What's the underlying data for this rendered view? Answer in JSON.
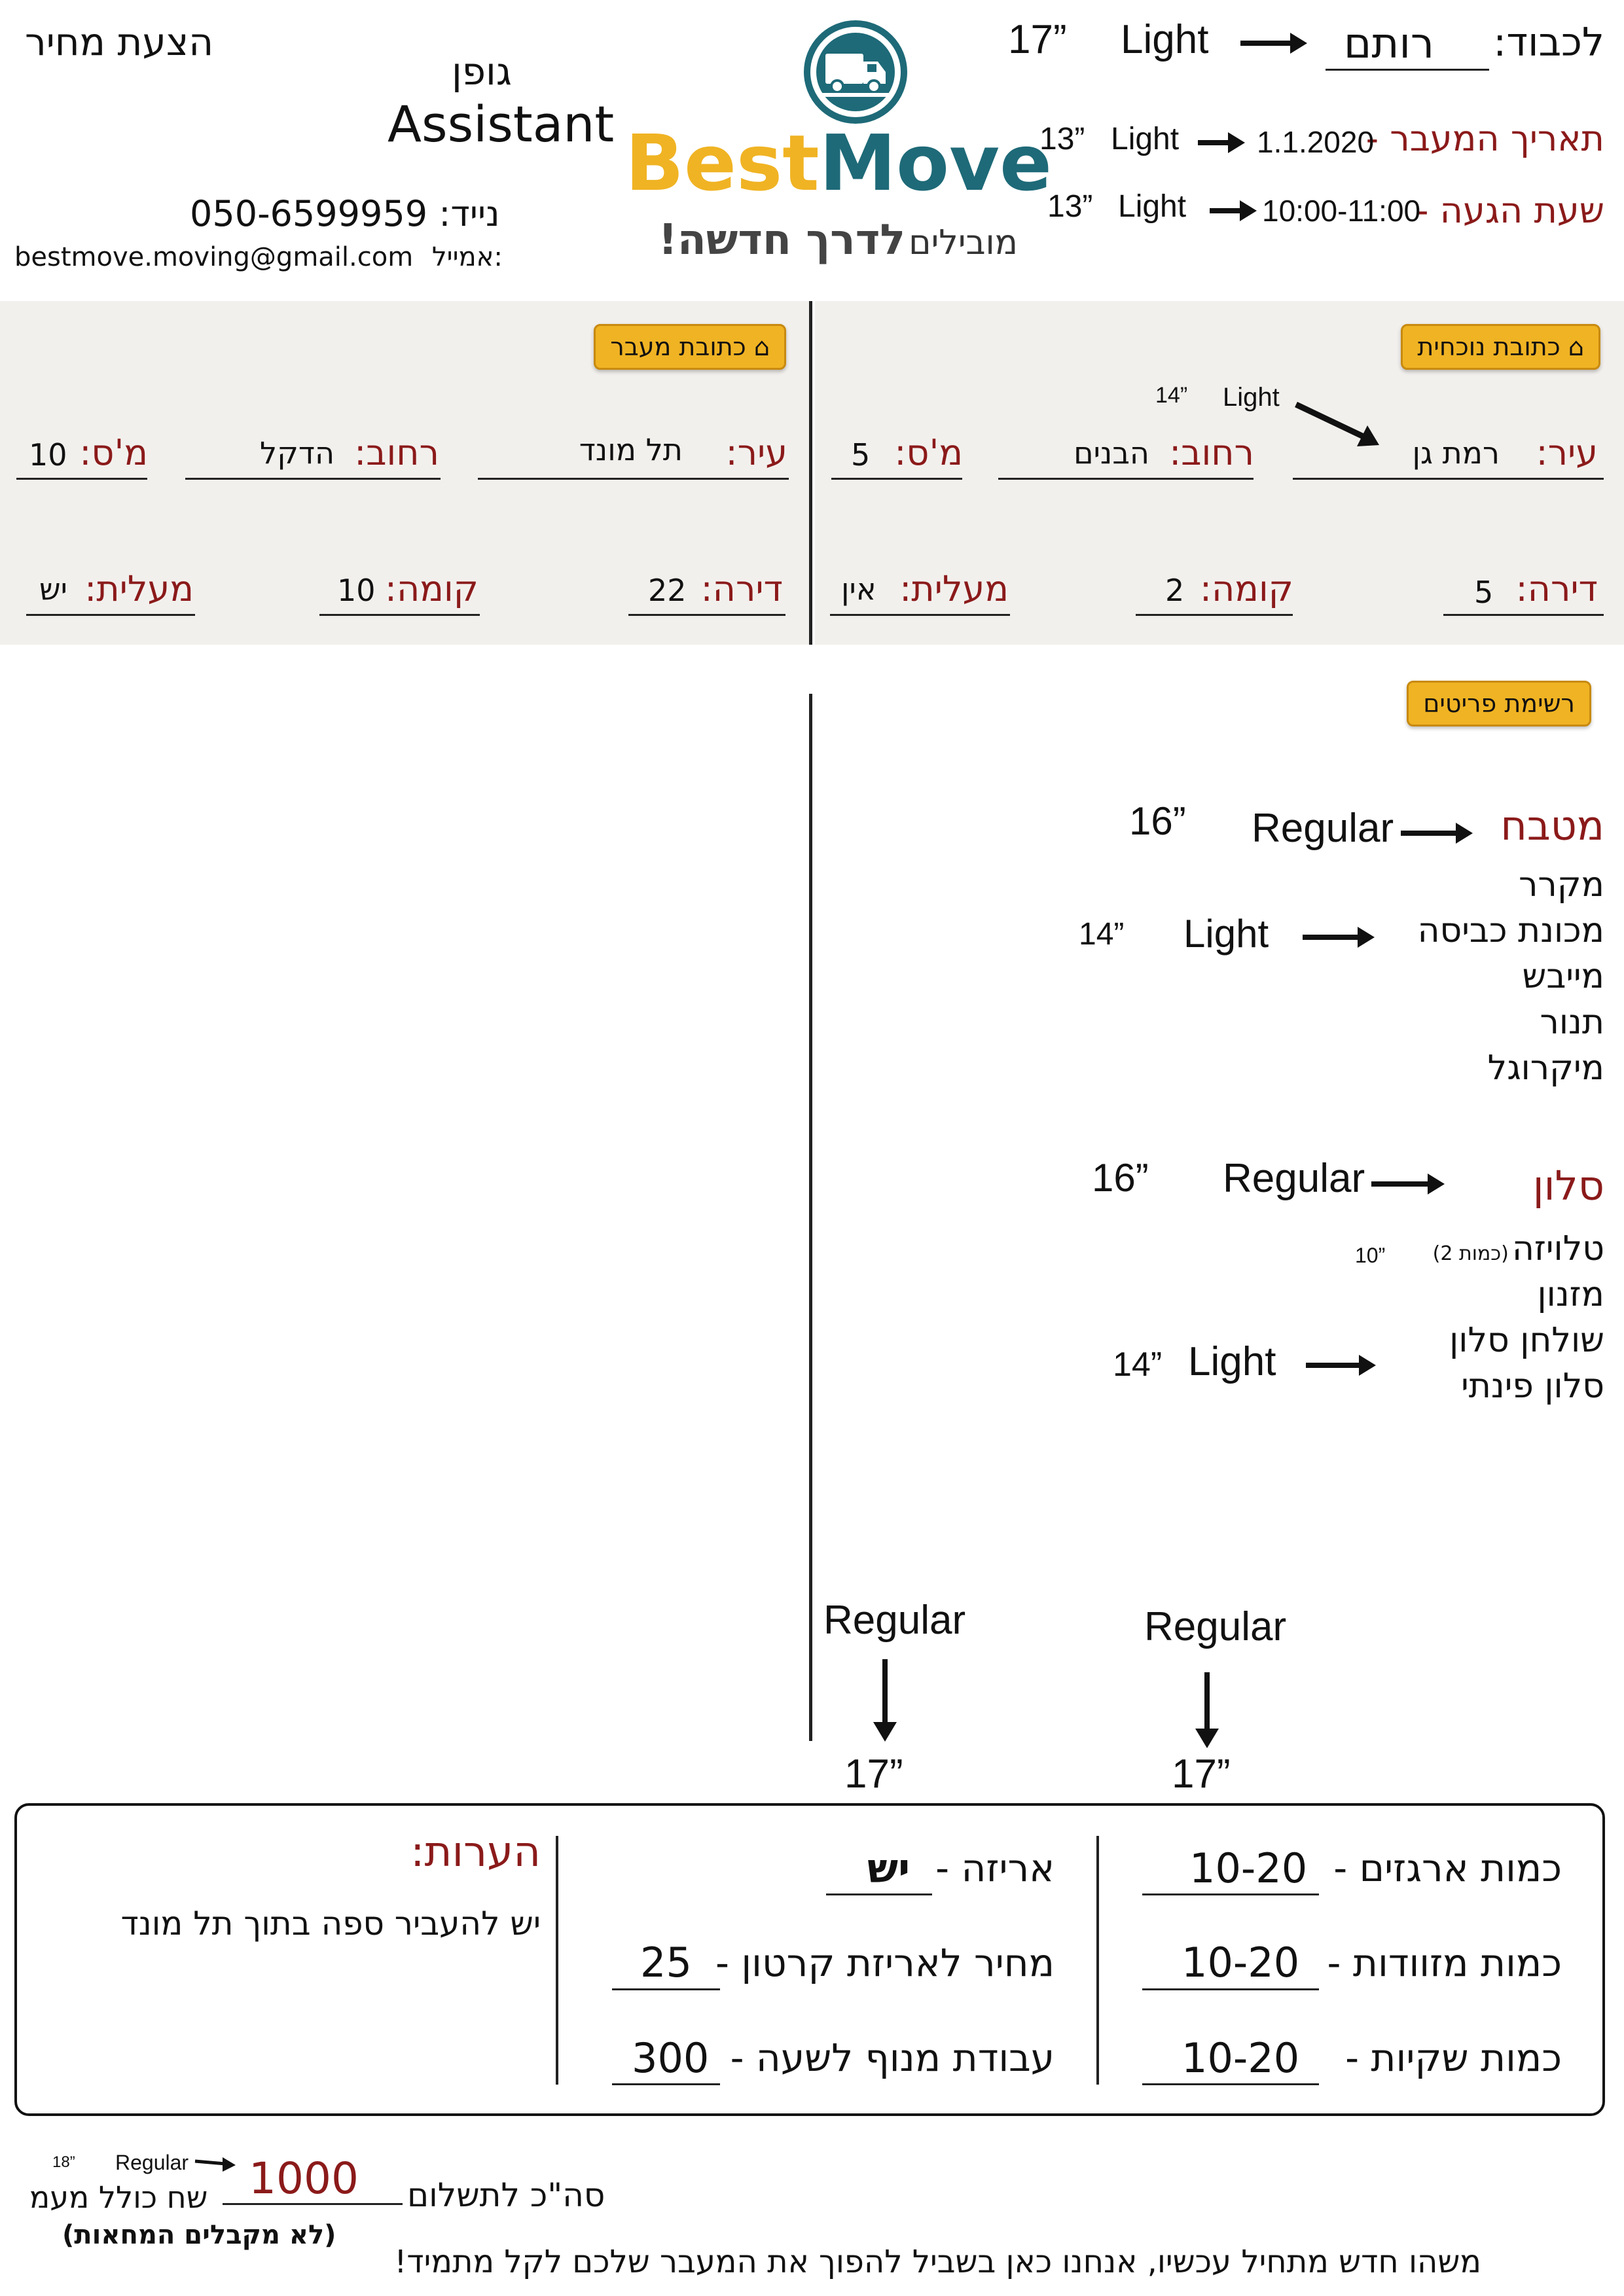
{
  "header": {
    "doc_title": "הצעת מחיר",
    "font_name": "גופן",
    "font_name_en": "Assistant",
    "phone_label": "נייד:",
    "phone": "050-6599959",
    "email_label": "אמייל:",
    "email": "bestmove.moving@gmail.com",
    "logo_best": "Best",
    "logo_move": "Move",
    "logo_tagline_a": "מובילים",
    "logo_tagline_b": "לדרך חדשה!",
    "to_label": "לכבוד:",
    "to_name": "רותם",
    "move_date_label": "תאריך המעבר -",
    "move_date": "1.1.2020",
    "arrival_label": "שעת הגעה -",
    "arrival_time": "10:00-11:00"
  },
  "annotations": {
    "to_size": "17”",
    "to_weight": "Light",
    "date_size": "13”",
    "date_weight": "Light",
    "time_size": "13”",
    "time_weight": "Light",
    "city_size": "14”",
    "city_weight": "Light",
    "kitchen_size": "16”",
    "kitchen_weight": "Regular",
    "kitchen_items_size": "14”",
    "kitchen_items_weight": "Light",
    "living_size": "16”",
    "living_weight": "Regular",
    "qty_size": "10”",
    "living_items_size": "14”",
    "living_items_weight": "Light",
    "summary_left_weight": "Regular",
    "summary_left_size": "17”",
    "summary_right_weight": "Regular",
    "summary_right_size": "17”",
    "total_weight": "Regular",
    "total_size": "18”"
  },
  "current_address": {
    "tag": "כתובת נוכחית",
    "city_label": "עיר:",
    "city": "רמת גן",
    "street_label": "רחוב:",
    "street": "הבנים",
    "number_label": "מ'ס:",
    "number": "5",
    "apt_label": "דירה:",
    "apt": "5",
    "floor_label": "קומה:",
    "floor": "2",
    "elevator_label": "מעלית:",
    "elevator": "אין"
  },
  "new_address": {
    "tag": "כתובת מעבר",
    "city_label": "עיר:",
    "city": "תל מונד",
    "street_label": "רחוב:",
    "street": "הדקל",
    "number_label": "מ'ס:",
    "number": "10",
    "apt_label": "דירה:",
    "apt": "22",
    "floor_label": "קומה:",
    "floor": "10",
    "elevator_label": "מעלית:",
    "elevator": "יש"
  },
  "items": {
    "tag": "רשימת פריטים",
    "kitchen_title": "מטבח",
    "kitchen": [
      "מקרר",
      "מכונת כביסה",
      "מייבש",
      "תנור",
      "מיקרוגל"
    ],
    "living_title": "סלון",
    "living_tv": "טלויזה",
    "living_tv_qty": "(כמות 2)",
    "living": [
      "מזנון",
      "שולחן סלון",
      "סלון פינתי"
    ]
  },
  "summary": {
    "boxes_label": "כמות ארגזים -",
    "boxes": "10-20",
    "suitcases_label": "כמות מזוודות -",
    "suitcases": "10-20",
    "bags_label": "כמות שקיות -",
    "bags": "10-20",
    "packing_label": "אריזה -",
    "packing": "יש",
    "box_price_label": "מחיר לאריזת קרטון -",
    "box_price": "25",
    "crane_label": "עבודת מנוף לשעה -",
    "crane": "300",
    "notes_label": "הערות:",
    "notes": "יש להעביר ספה בתוך תל מונד"
  },
  "footer": {
    "total_label": "סה\"כ לתשלום",
    "total": "1000",
    "currency_note": "שח כולל מעמ",
    "checks_note": "(לא מקבלים המחאות)",
    "slogan": "משהו חדש מתחיל עכשיו, אנחנו כאן בשביל להפוך את המעבר שלכם לקל מתמיד!"
  },
  "colors": {
    "accent_yellow": "#f0b323",
    "label_red": "#8b1a1a",
    "logo_teal": "#1e6a78",
    "panel_bg": "#f2f0ed"
  }
}
